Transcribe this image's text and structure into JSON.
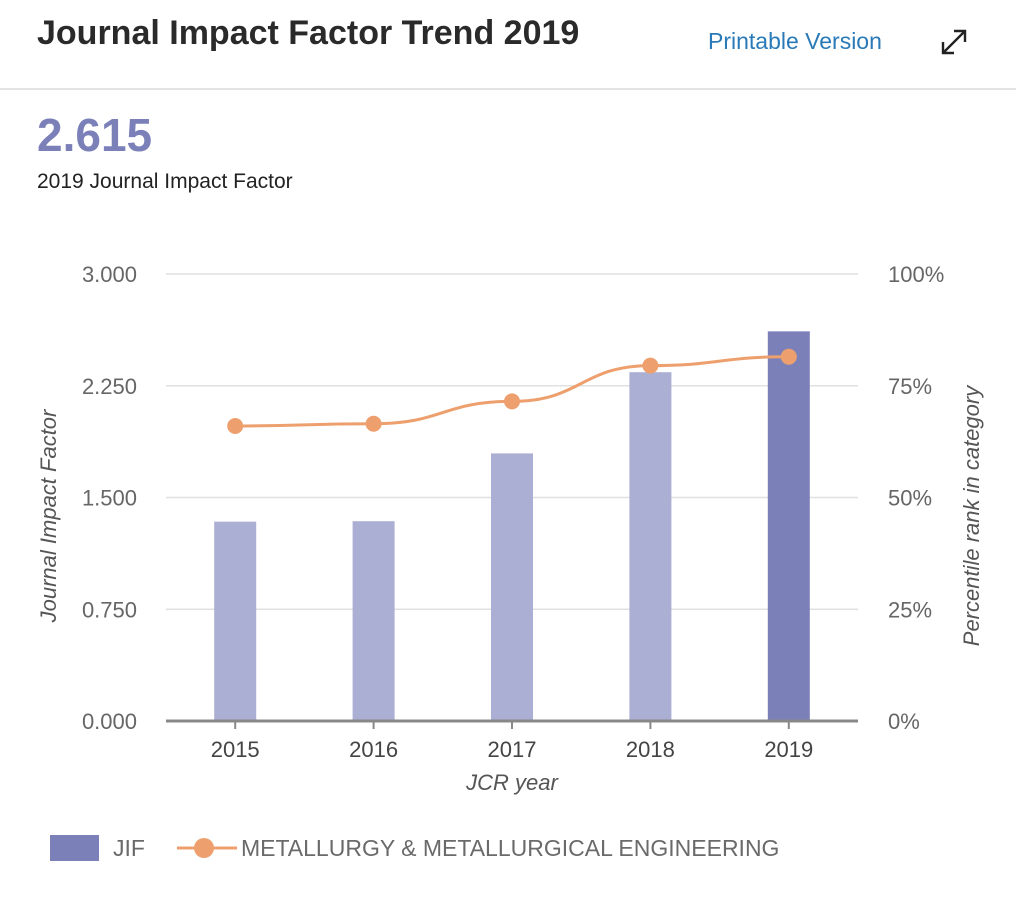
{
  "header": {
    "title": "Journal Impact Factor Trend 2019",
    "printable_label": "Printable Version",
    "expand_icon": "expand-arrows-icon"
  },
  "summary": {
    "value": "2.615",
    "caption": "2019 Journal Impact Factor"
  },
  "colors": {
    "jif_bar": "#abafd3",
    "jif_bar_current": "#7b80b9",
    "percentile_line": "#eda06e",
    "grid": "#e0e0e0",
    "axis": "#888888",
    "link": "#2a7ab8"
  },
  "chart_data": {
    "type": "bar",
    "title": "",
    "xlabel": "JCR year",
    "ylabel": "Journal Impact Factor",
    "y2label": "Percentile rank in category",
    "categories": [
      "2015",
      "2016",
      "2017",
      "2018",
      "2019"
    ],
    "ylim": [
      0,
      3
    ],
    "yticks": [
      "3.000",
      "2.250",
      "1.500",
      "0.750",
      "0.000"
    ],
    "y2lim": [
      0,
      100
    ],
    "y2ticks": [
      "100%",
      "75%",
      "50%",
      "25%",
      "0%"
    ],
    "grid": true,
    "legend_position": "bottom-left",
    "series": [
      {
        "name": "JIF",
        "type": "bar",
        "axis": "left",
        "values": [
          1.338,
          1.341,
          1.796,
          2.341,
          2.615
        ]
      },
      {
        "name": "METALLURGY & METALLURGICAL ENGINEERING",
        "type": "line",
        "axis": "right",
        "values": [
          66.0,
          66.5,
          71.5,
          79.5,
          81.5
        ]
      }
    ]
  }
}
